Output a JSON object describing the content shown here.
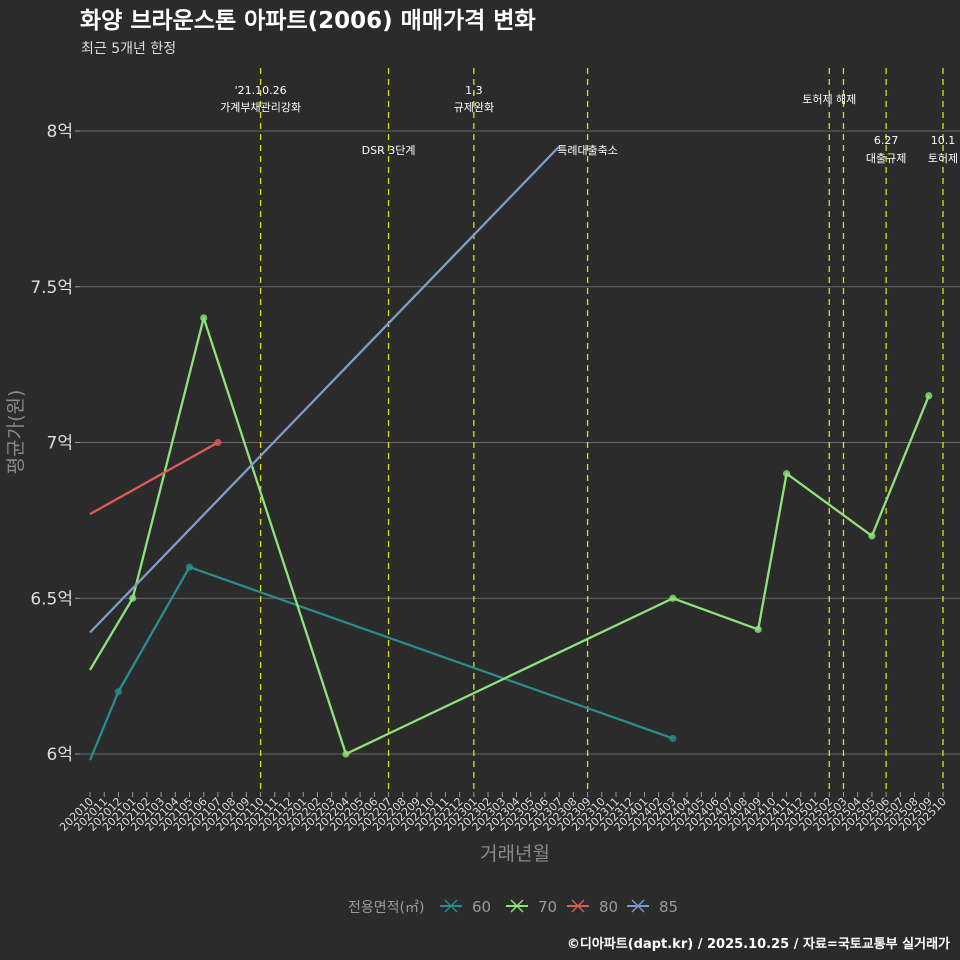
{
  "chart_data": {
    "type": "line",
    "title": "화양 브라운스톤 아파트(2006) 매매가격 변화",
    "subtitle": "최근 5개년 한정",
    "xlabel": "거래년월",
    "ylabel": "평균가(원)",
    "ylim": [
      5.9,
      8.2
    ],
    "yticks": [
      {
        "value": 6,
        "label": "6억"
      },
      {
        "value": 6.5,
        "label": "6.5억"
      },
      {
        "value": 7,
        "label": "7억"
      },
      {
        "value": 7.5,
        "label": "7.5억"
      },
      {
        "value": 8,
        "label": "8억"
      }
    ],
    "categories": [
      "202010",
      "202011",
      "202012",
      "202101",
      "202102",
      "202103",
      "202104",
      "202105",
      "202106",
      "202107",
      "202108",
      "202109",
      "202110",
      "202111",
      "202112",
      "202201",
      "202202",
      "202203",
      "202204",
      "202205",
      "202206",
      "202207",
      "202208",
      "202209",
      "202210",
      "202211",
      "202212",
      "202301",
      "202302",
      "202303",
      "202304",
      "202305",
      "202306",
      "202307",
      "202308",
      "202309",
      "202310",
      "202311",
      "202312",
      "202401",
      "202402",
      "202403",
      "202404",
      "202405",
      "202406",
      "202407",
      "202408",
      "202409",
      "202410",
      "202411",
      "202412",
      "202501",
      "202502",
      "202503",
      "202504",
      "202505",
      "202506",
      "202507",
      "202508",
      "202509",
      "202510"
    ],
    "legend_title": "전용면적(㎡)",
    "series": [
      {
        "name": "60",
        "color": "#2a8c8c",
        "line": [
          [
            "202010",
            5.98
          ],
          [
            "202012",
            6.2
          ],
          [
            "202105",
            6.6
          ],
          [
            "202403",
            6.05
          ]
        ],
        "points": [
          [
            "202012",
            6.2
          ],
          [
            "202105",
            6.6
          ],
          [
            "202403",
            6.05
          ]
        ]
      },
      {
        "name": "70",
        "color": "#8fe27b",
        "line": [
          [
            "202010",
            6.27
          ],
          [
            "202101",
            6.5
          ],
          [
            "202106",
            7.4
          ],
          [
            "202204",
            6.0
          ],
          [
            "202403",
            6.5
          ],
          [
            "202409",
            6.4
          ],
          [
            "202411",
            6.9
          ],
          [
            "202505",
            6.7
          ],
          [
            "202509",
            7.15
          ]
        ],
        "points": [
          [
            "202101",
            6.5
          ],
          [
            "202106",
            7.4
          ],
          [
            "202204",
            6.0
          ],
          [
            "202403",
            6.5
          ],
          [
            "202409",
            6.4
          ],
          [
            "202411",
            6.9
          ],
          [
            "202505",
            6.7
          ],
          [
            "202509",
            7.15
          ]
        ]
      },
      {
        "name": "80",
        "color": "#e05a5a",
        "line": [
          [
            "202010",
            6.77
          ],
          [
            "202107",
            7.0
          ]
        ],
        "points": [
          [
            "202107",
            7.0
          ]
        ]
      },
      {
        "name": "85",
        "color": "#7f9cc8",
        "line": [
          [
            "202010",
            6.39
          ],
          [
            "202307",
            7.95
          ]
        ],
        "points": []
      }
    ],
    "events": [
      {
        "x": "202110",
        "lines": [
          "'21.10.26",
          "가계부채관리강화"
        ],
        "row": "upper"
      },
      {
        "x": "202207",
        "lines": [
          "DSR 3단계"
        ],
        "row": "lower"
      },
      {
        "x": "202301",
        "lines": [
          "1.3",
          "규제완화"
        ],
        "row": "upper"
      },
      {
        "x": "202309",
        "lines": [
          "특례대출축소"
        ],
        "row": "lower"
      },
      {
        "x": "202502",
        "lines": [
          "토허제 해제"
        ],
        "row": "mid"
      },
      {
        "x": "202503",
        "lines": [],
        "row": "mid"
      },
      {
        "x": "202506",
        "lines": [
          "6.27",
          "대출규제"
        ],
        "row": "lower"
      },
      {
        "x": "202510",
        "lines": [
          "10.1",
          "토허제"
        ],
        "row": "lower"
      }
    ],
    "grid": true,
    "legend_position": "bottom"
  },
  "footer": {
    "credit": "©디아파트(dapt.kr) / 2025.10.25 / 자료=국토교통부 실거래가"
  }
}
